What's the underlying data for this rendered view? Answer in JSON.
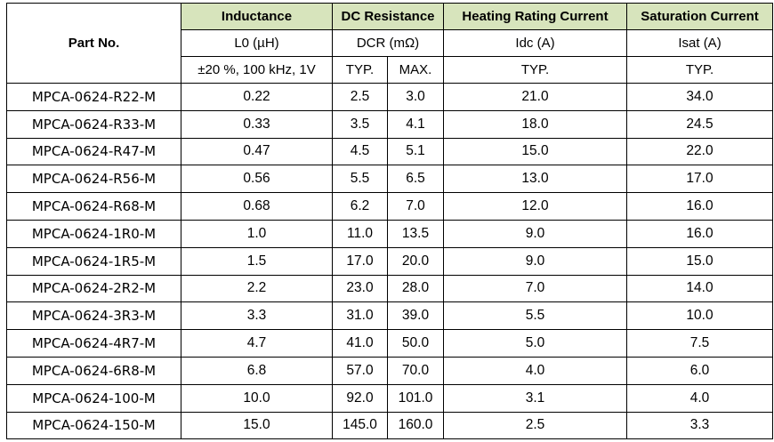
{
  "header": {
    "part_no": "Part No.",
    "groups": {
      "inductance": "Inductance",
      "dc_resistance": "DC Resistance",
      "heating": "Heating Rating Current",
      "saturation": "Saturation Current"
    },
    "units": {
      "inductance": "L0 (µH)",
      "dcr": "DCR (mΩ)",
      "idc": "Idc (A)",
      "isat": "Isat (A)"
    },
    "conditions": {
      "inductance": "±20 %, 100 kHz, 1V",
      "dcr_typ": "TYP.",
      "dcr_max": "MAX.",
      "idc": "TYP.",
      "isat": "TYP."
    }
  },
  "rows": [
    {
      "part": "MPCA-0624-R22-M",
      "l0": "0.22",
      "dcr_typ": "2.5",
      "dcr_max": "3.0",
      "idc": "21.0",
      "isat": "34.0"
    },
    {
      "part": "MPCA-0624-R33-M",
      "l0": "0.33",
      "dcr_typ": "3.5",
      "dcr_max": "4.1",
      "idc": "18.0",
      "isat": "24.5"
    },
    {
      "part": "MPCA-0624-R47-M",
      "l0": "0.47",
      "dcr_typ": "4.5",
      "dcr_max": "5.1",
      "idc": "15.0",
      "isat": "22.0"
    },
    {
      "part": "MPCA-0624-R56-M",
      "l0": "0.56",
      "dcr_typ": "5.5",
      "dcr_max": "6.5",
      "idc": "13.0",
      "isat": "17.0"
    },
    {
      "part": "MPCA-0624-R68-M",
      "l0": "0.68",
      "dcr_typ": "6.2",
      "dcr_max": "7.0",
      "idc": "12.0",
      "isat": "16.0"
    },
    {
      "part": "MPCA-0624-1R0-M",
      "l0": "1.0",
      "dcr_typ": "11.0",
      "dcr_max": "13.5",
      "idc": "9.0",
      "isat": "16.0"
    },
    {
      "part": "MPCA-0624-1R5-M",
      "l0": "1.5",
      "dcr_typ": "17.0",
      "dcr_max": "20.0",
      "idc": "9.0",
      "isat": "15.0"
    },
    {
      "part": "MPCA-0624-2R2-M",
      "l0": "2.2",
      "dcr_typ": "23.0",
      "dcr_max": "28.0",
      "idc": "7.0",
      "isat": "14.0"
    },
    {
      "part": "MPCA-0624-3R3-M",
      "l0": "3.3",
      "dcr_typ": "31.0",
      "dcr_max": "39.0",
      "idc": "5.5",
      "isat": "10.0"
    },
    {
      "part": "MPCA-0624-4R7-M",
      "l0": "4.7",
      "dcr_typ": "41.0",
      "dcr_max": "50.0",
      "idc": "5.0",
      "isat": "7.5"
    },
    {
      "part": "MPCA-0624-6R8-M",
      "l0": "6.8",
      "dcr_typ": "57.0",
      "dcr_max": "70.0",
      "idc": "4.0",
      "isat": "6.0"
    },
    {
      "part": "MPCA-0624-100-M",
      "l0": "10.0",
      "dcr_typ": "92.0",
      "dcr_max": "101.0",
      "idc": "3.1",
      "isat": "4.0"
    },
    {
      "part": "MPCA-0624-150-M",
      "l0": "15.0",
      "dcr_typ": "145.0",
      "dcr_max": "160.0",
      "idc": "2.5",
      "isat": "3.3"
    }
  ],
  "colors": {
    "header_fill": "#d7e4bc"
  }
}
